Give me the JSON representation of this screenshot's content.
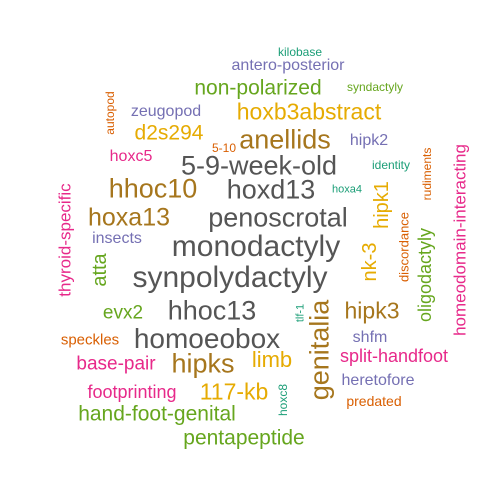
{
  "colors": {
    "teal": "#1b9e77",
    "orange": "#d95f02",
    "purple": "#7570b3",
    "magenta": "#e7298a",
    "green": "#66a61e",
    "gold": "#e6ab02",
    "brown": "#a6761d",
    "gray": "#555555"
  },
  "words": [
    {
      "text": "kilobase",
      "color": "teal"
    },
    {
      "text": "antero-posterior",
      "color": "purple"
    },
    {
      "text": "syndactyly",
      "color": "green"
    },
    {
      "text": "non-polarized",
      "color": "green"
    },
    {
      "text": "autopod",
      "color": "orange"
    },
    {
      "text": "zeugopod",
      "color": "purple"
    },
    {
      "text": "hoxb3abstract",
      "color": "gold"
    },
    {
      "text": "d2s294",
      "color": "gold"
    },
    {
      "text": "anellids",
      "color": "brown"
    },
    {
      "text": "hipk2",
      "color": "purple"
    },
    {
      "text": "5-10",
      "color": "orange"
    },
    {
      "text": "homeodomain-interacting",
      "color": "magenta"
    },
    {
      "text": "hoxc5",
      "color": "magenta"
    },
    {
      "text": "5-9-week-old",
      "color": "gray"
    },
    {
      "text": "identity",
      "color": "teal"
    },
    {
      "text": "rudiments",
      "color": "orange"
    },
    {
      "text": "thyroid-specific",
      "color": "magenta"
    },
    {
      "text": "hhoc10",
      "color": "brown"
    },
    {
      "text": "hoxd13",
      "color": "gray"
    },
    {
      "text": "hoxa4",
      "color": "teal"
    },
    {
      "text": "hipk1",
      "color": "gold"
    },
    {
      "text": "hoxa13",
      "color": "brown"
    },
    {
      "text": "penoscrotal",
      "color": "gray"
    },
    {
      "text": "discordance",
      "color": "orange"
    },
    {
      "text": "oligodactyly",
      "color": "green"
    },
    {
      "text": "insects",
      "color": "purple"
    },
    {
      "text": "monodactyly",
      "color": "gray"
    },
    {
      "text": "nk-3",
      "color": "gold"
    },
    {
      "text": "atta",
      "color": "green"
    },
    {
      "text": "synpolydactyly",
      "color": "gray"
    },
    {
      "text": "evx2",
      "color": "green"
    },
    {
      "text": "hhoc13",
      "color": "gray"
    },
    {
      "text": "genitalia",
      "color": "brown"
    },
    {
      "text": "hipk3",
      "color": "brown"
    },
    {
      "text": "tlf-1",
      "color": "teal"
    },
    {
      "text": "homoeobox",
      "color": "gray"
    },
    {
      "text": "shfm",
      "color": "purple"
    },
    {
      "text": "speckles",
      "color": "orange"
    },
    {
      "text": "split-handfoot",
      "color": "magenta"
    },
    {
      "text": "base-pair",
      "color": "magenta"
    },
    {
      "text": "hipks",
      "color": "brown"
    },
    {
      "text": "limb",
      "color": "gold"
    },
    {
      "text": "heretofore",
      "color": "purple"
    },
    {
      "text": "footprinting",
      "color": "magenta"
    },
    {
      "text": "117-kb",
      "color": "gold"
    },
    {
      "text": "hoxc8",
      "color": "teal"
    },
    {
      "text": "predated",
      "color": "orange"
    },
    {
      "text": "hand-foot-genital",
      "color": "green"
    },
    {
      "text": "pentapeptide",
      "color": "green"
    }
  ]
}
